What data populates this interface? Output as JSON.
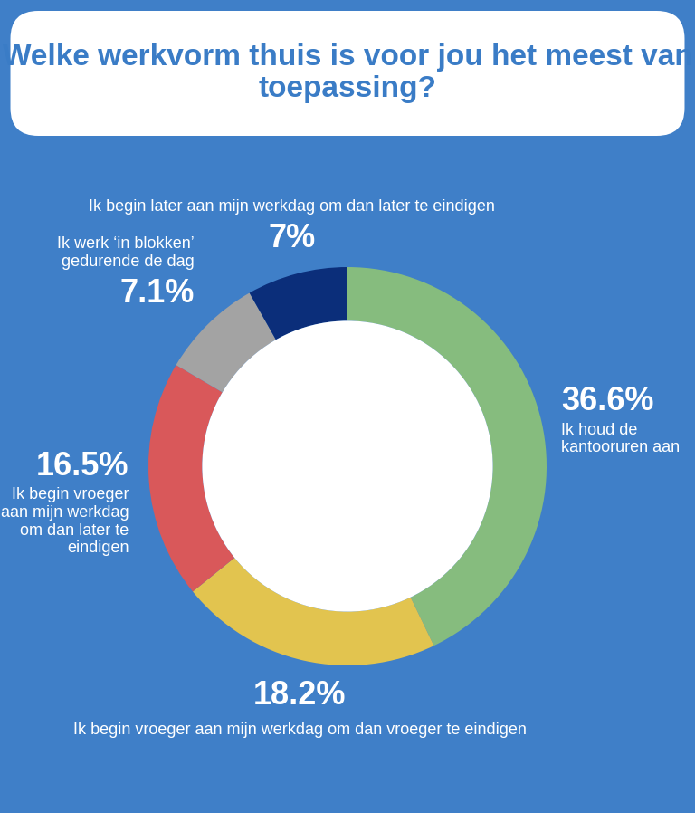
{
  "chart_data": {
    "type": "donut",
    "title": "Welke werkvorm thuis is voor jou het meest van toepassing?",
    "categories": [
      "Ik houd de kantooruren aan",
      "Ik begin vroeger aan mijn werkdag om dan vroeger te eindigen",
      "Ik begin vroeger aan mijn werkdag om dan later te eindigen",
      "Ik werk ‘in blokken’ gedurende de dag",
      "Ik begin later aan mijn werkdag om dan later te eindigen"
    ],
    "values": [
      36.6,
      18.2,
      16.5,
      7.1,
      7
    ],
    "value_labels": [
      "36.6%",
      "18.2%",
      "16.5%",
      "7.1%",
      "7%"
    ],
    "colors": [
      "#86bc7e",
      "#e2c44f",
      "#d9585a",
      "#a3a3a3",
      "#0b2e7a"
    ],
    "data_labels": true
  }
}
